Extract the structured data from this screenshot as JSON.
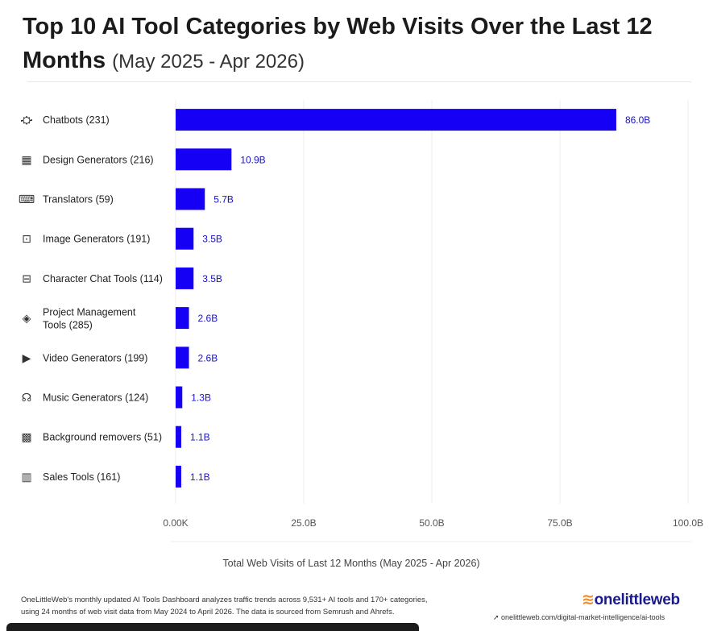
{
  "title": {
    "main": "Top 10 AI Tool Categories by Web Visits Over the Last 12 Months",
    "range": "(May 2025 - Apr 2026)"
  },
  "chart_data": {
    "type": "bar",
    "orientation": "horizontal",
    "categories": [
      "Chatbots (231)",
      "Design Generators (216)",
      "Translators (59)",
      "Image Generators (191)",
      "Character Chat Tools (114)",
      "Project Management Tools (285)",
      "Video Generators (199)",
      "Music Generators (124)",
      "Background removers (51)",
      "Sales Tools (161)"
    ],
    "icons": [
      "chatbot-icon",
      "design-icon",
      "translate-icon",
      "image-icon",
      "character-chat-icon",
      "layers-icon",
      "video-icon",
      "headphones-icon",
      "background-remover-icon",
      "sales-chart-icon"
    ],
    "values": [
      86.0,
      10.9,
      5.7,
      3.5,
      3.5,
      2.6,
      2.6,
      1.3,
      1.1,
      1.1
    ],
    "value_labels": [
      "86.0B",
      "10.9B",
      "5.7B",
      "3.5B",
      "3.5B",
      "2.6B",
      "2.6B",
      "1.3B",
      "1.1B",
      "1.1B"
    ],
    "xlim": [
      0,
      100
    ],
    "xticks": [
      "0.00K",
      "25.0B",
      "50.0B",
      "75.0B",
      "100.0B"
    ],
    "xlabel": "Total Web Visits of Last 12 Months (May 2025 - Apr 2026)",
    "bar_color": "#1500f5",
    "label_color": "#1a10c8",
    "grid": true
  },
  "footer": {
    "note_line1": "OneLittleWeb's monthly updated AI Tools Dashboard analyzes traffic trends across 9,531+ AI tools and 170+ categories,",
    "note_line2": "using 24 months of web visit data from May 2024 to April 2026. The data is sourced from Semrush and Ahrefs.",
    "brand": "onelittleweb",
    "url": "onelittleweb.com/digital-market-intelligence/ai-tools"
  }
}
